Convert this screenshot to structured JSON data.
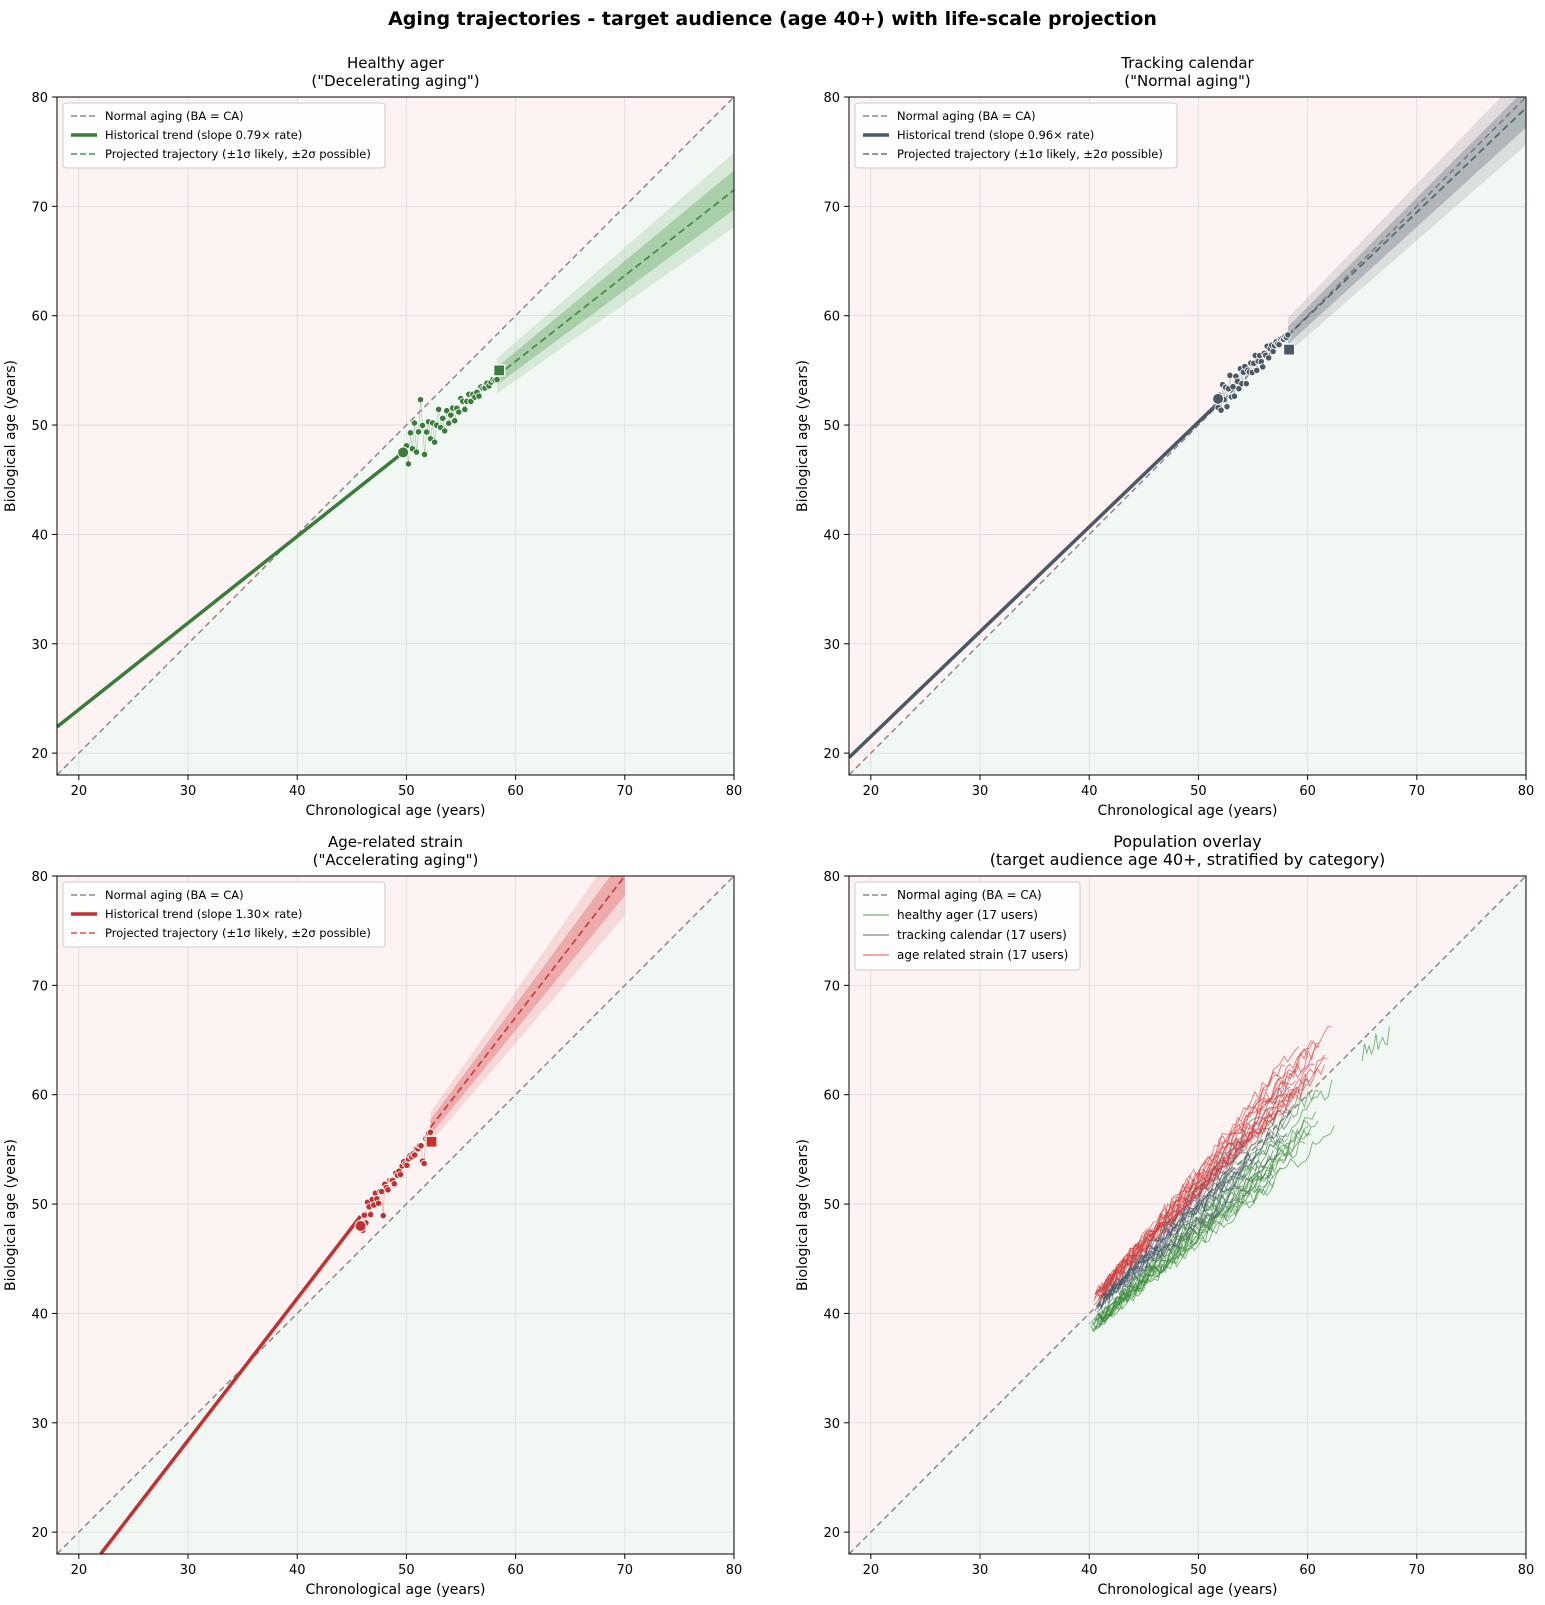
{
  "figure": {
    "title": "Aging trajectories - target audience (age 40+) with life-scale projection"
  },
  "chart_data": [
    {
      "type": "line",
      "title": "Healthy ager\n(\"Decelerating aging\")",
      "xlabel": "Chronological age (years)",
      "ylabel": "Biological age (years)",
      "xlim": [
        18,
        80
      ],
      "ylim": [
        18,
        80
      ],
      "xticks": [
        20,
        30,
        40,
        50,
        60,
        70,
        80
      ],
      "yticks": [
        20,
        30,
        40,
        50,
        60,
        70,
        80
      ],
      "grid": true,
      "legend_position": "top-left",
      "color": "#3a7d3a",
      "band_color": "#4a9a4a",
      "legend": [
        "Normal aging (BA = CA)",
        "Historical trend (slope 0.79× rate)",
        "Projected trajectory (±1σ likely, ±2σ possible)"
      ],
      "reference_line": {
        "x": [
          18,
          80
        ],
        "y": [
          18,
          80
        ]
      },
      "historical_trend": {
        "x": [
          18,
          49.7
        ],
        "y": [
          22.4,
          47.5
        ]
      },
      "projection": {
        "x": [
          58.3,
          80
        ],
        "y": [
          54.5,
          71.5
        ],
        "sigma1_end": 1.8,
        "sigma2_end": 3.4,
        "sigma1_start": 0.8,
        "sigma2_start": 1.6
      },
      "start_point": {
        "x": 49.7,
        "y": 47.5
      },
      "current_point": {
        "x": 58.5,
        "y": 55.0
      },
      "observations": {
        "x0": 50.0,
        "x1": 58.3,
        "n": 46,
        "y_at_x0": 47.6,
        "slope": 0.79,
        "noise": [
          0.5,
          -1.3,
          1.4,
          -0.2,
          2.0,
          -0.8,
          0.9,
          3.7,
          1.2,
          -1.6,
          0.3,
          1.1,
          -0.6,
          0.7,
          -1.2,
          0.2,
          1.5,
          -0.3,
          0.4,
          -0.9,
          0.8,
          -0.5,
          0.1,
          0.6,
          -0.7,
          0.3,
          -0.2,
          0.9,
          0.5,
          -0.4,
          0.2,
          0.7,
          -0.1,
          0.4,
          0.0,
          0.3,
          -0.2,
          0.5,
          0.2,
          0.1,
          0.4,
          0.0,
          0.2,
          0.3,
          0.1,
          0.0
        ]
      }
    },
    {
      "type": "line",
      "title": "Tracking calendar\n(\"Normal aging\")",
      "xlabel": "Chronological age (years)",
      "ylabel": "Biological age (years)",
      "xlim": [
        18,
        80
      ],
      "ylim": [
        18,
        80
      ],
      "xticks": [
        20,
        30,
        40,
        50,
        60,
        70,
        80
      ],
      "yticks": [
        20,
        30,
        40,
        50,
        60,
        70,
        80
      ],
      "grid": true,
      "legend_position": "top-left",
      "color": "#4b5866",
      "band_color": "#5a6470",
      "legend": [
        "Normal aging (BA = CA)",
        "Historical trend (slope 0.96× rate)",
        "Projected trajectory (±1σ likely, ±2σ possible)"
      ],
      "reference_line": {
        "x": [
          18,
          80
        ],
        "y": [
          18,
          80
        ]
      },
      "historical_trend": {
        "x": [
          18,
          51.8
        ],
        "y": [
          19.6,
          52.0
        ]
      },
      "projection": {
        "x": [
          58.2,
          80
        ],
        "y": [
          58.2,
          79.0
        ],
        "sigma1_end": 1.8,
        "sigma2_end": 3.4,
        "sigma1_start": 0.8,
        "sigma2_start": 1.6
      },
      "start_point": {
        "x": 51.8,
        "y": 52.4
      },
      "current_point": {
        "x": 58.3,
        "y": 56.9
      },
      "observations": {
        "x0": 51.8,
        "x1": 58.2,
        "n": 48,
        "y_at_x0": 52.0,
        "slope": 0.96,
        "noise": [
          -0.4,
          0.6,
          -0.9,
          1.3,
          -0.2,
          0.8,
          -1.1,
          0.4,
          1.5,
          -0.6,
          0.2,
          -0.8,
          0.9,
          0.3,
          -0.5,
          1.2,
          -0.3,
          0.6,
          1.0,
          -0.7,
          0.4,
          0.1,
          0.8,
          -0.2,
          0.5,
          1.1,
          -0.4,
          0.3,
          0.7,
          0.0,
          -0.6,
          0.5,
          0.2,
          0.9,
          -0.3,
          0.4,
          0.6,
          -0.1,
          0.3,
          0.5,
          0.2,
          0.0,
          0.4,
          0.3,
          0.1,
          0.2,
          0.0,
          0.1
        ]
      }
    },
    {
      "type": "line",
      "title": "Age-related strain\n(\"Accelerating aging\")",
      "xlabel": "Chronological age (years)",
      "ylabel": "Biological age (years)",
      "xlim": [
        18,
        80
      ],
      "ylim": [
        18,
        80
      ],
      "xticks": [
        20,
        30,
        40,
        50,
        60,
        70,
        80
      ],
      "yticks": [
        20,
        30,
        40,
        50,
        60,
        70,
        80
      ],
      "grid": true,
      "legend_position": "top-left",
      "color": "#c4302f",
      "band_color": "#d94a4a",
      "legend": [
        "Normal aging (BA = CA)",
        "Historical trend (slope 1.30× rate)",
        "Projected trajectory (±1σ likely, ±2σ possible)"
      ],
      "reference_line": {
        "x": [
          18,
          80
        ],
        "y": [
          18,
          80
        ]
      },
      "historical_trend": {
        "x": [
          22.0,
          45.8
        ],
        "y": [
          18.0,
          48.9
        ]
      },
      "projection": {
        "x": [
          52.2,
          70.0
        ],
        "y": [
          57.0,
          80.0
        ],
        "sigma1_end": 1.8,
        "sigma2_end": 3.6,
        "sigma1_start": 0.7,
        "sigma2_start": 1.4
      },
      "start_point": {
        "x": 45.8,
        "y": 48.0
      },
      "current_point": {
        "x": 52.3,
        "y": 55.7
      },
      "observations": {
        "x0": 46.0,
        "x1": 52.2,
        "n": 44,
        "y_at_x0": 48.4,
        "slope": 1.3,
        "noise": [
          -0.8,
          0.4,
          -0.5,
          1.2,
          0.6,
          -0.3,
          0.9,
          0.2,
          1.1,
          0.4,
          -0.2,
          0.7,
          0.5,
          -1.9,
          0.8,
          0.3,
          -0.1,
          0.6,
          0.4,
          0.2,
          -0.3,
          0.5,
          0.1,
          0.3,
          -0.2,
          0.4,
          0.6,
          0.2,
          -0.1,
          0.3,
          0.4,
          0.1,
          0.2,
          -0.1,
          0.3,
          0.1,
          0.2,
          0.0,
          -1.6,
          -2.0,
          0.1,
          0.0,
          0.2,
          0.1
        ]
      }
    },
    {
      "type": "line",
      "title": "Population overlay\n(target audience age 40+, stratified by category)",
      "xlabel": "Chronological age (years)",
      "ylabel": "Biological age (years)",
      "xlim": [
        18,
        80
      ],
      "ylim": [
        18,
        80
      ],
      "xticks": [
        20,
        30,
        40,
        50,
        60,
        70,
        80
      ],
      "yticks": [
        20,
        30,
        40,
        50,
        60,
        70,
        80
      ],
      "grid": true,
      "legend_position": "top-left",
      "legend": [
        "Normal aging (BA = CA)",
        "healthy ager (17 users)",
        "tracking calendar (17 users)",
        "age related strain (17 users)"
      ],
      "reference_line": {
        "x": [
          18,
          80
        ],
        "y": [
          18,
          80
        ]
      },
      "series": [
        {
          "name": "healthy ager (17 users)",
          "color": "#3a8a3a",
          "users": 17,
          "x_start": 40.5,
          "x_end": 63.5,
          "y_start": 39.0,
          "slope": 0.93,
          "extra_segment": {
            "x": [
              65.0,
              67.5
            ],
            "y": [
              64.0,
              65.5
            ]
          }
        },
        {
          "name": "tracking calendar (17 users)",
          "color": "#4b5866",
          "users": 17,
          "x_start": 41.0,
          "x_end": 59.0,
          "y_start": 41.0,
          "slope": 0.99
        },
        {
          "name": "age related strain (17 users)",
          "color": "#d03a3a",
          "users": 17,
          "x_start": 41.0,
          "x_end": 63.0,
          "y_start": 42.0,
          "slope": 1.1
        }
      ]
    }
  ]
}
